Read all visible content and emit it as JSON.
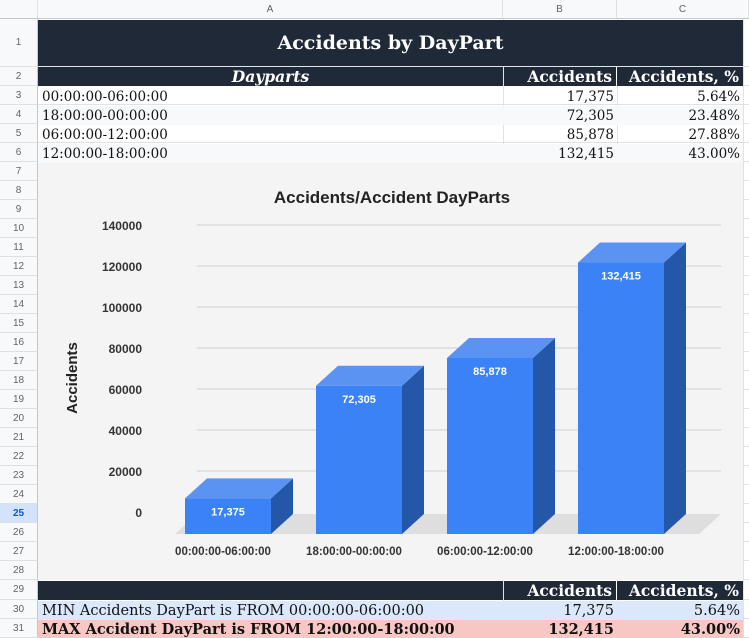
{
  "columns": [
    "A",
    "B",
    "C"
  ],
  "rows": [
    "1",
    "2",
    "3",
    "4",
    "5",
    "6",
    "7",
    "8",
    "9",
    "10",
    "11",
    "12",
    "13",
    "14",
    "15",
    "16",
    "17",
    "18",
    "19",
    "20",
    "21",
    "22",
    "23",
    "24",
    "25",
    "26",
    "27",
    "28",
    "29",
    "30",
    "31"
  ],
  "active_row": "25",
  "title": "Accidents by DayPart",
  "table": {
    "headers": [
      "Dayparts",
      "Accidents",
      "Accidents, %"
    ],
    "rows": [
      {
        "daypart": "00:00:00-06:00:00",
        "accidents": "17,375",
        "pct": "5.64%"
      },
      {
        "daypart": "18:00:00-00:00:00",
        "accidents": "72,305",
        "pct": "23.48%"
      },
      {
        "daypart": "06:00:00-12:00:00",
        "accidents": "85,878",
        "pct": "27.88%"
      },
      {
        "daypart": "12:00:00-18:00:00",
        "accidents": "132,415",
        "pct": "43.00%"
      }
    ]
  },
  "summary": {
    "headers": [
      "Accidents",
      "Accidents, %"
    ],
    "min": {
      "label": "MIN Accidents DayPart is FROM 00:00:00-06:00:00",
      "accidents": "17,375",
      "pct": "5.64%"
    },
    "max": {
      "label": "MAX Accident DayPart is FROM 12:00:00-18:00:00",
      "accidents": "132,415",
      "pct": "43.00%"
    }
  },
  "colors": {
    "header_bg": "#1f2937",
    "bar_front": "#3b82f6",
    "bar_top": "#5b93f2",
    "bar_side": "#2557a8",
    "min_row": "#dbe8fb",
    "max_row": "#f8c7c3"
  },
  "chart_data": {
    "type": "bar",
    "title": "Accidents/Accident DayParts",
    "xlabel": "",
    "ylabel": "Accidents",
    "categories": [
      "00:00:00-06:00:00",
      "18:00:00-00:00:00",
      "06:00:00-12:00:00",
      "12:00:00-18:00:00"
    ],
    "values": [
      17375,
      72305,
      85878,
      132415
    ],
    "data_labels": [
      "17,375",
      "72,305",
      "85,878",
      "132,415"
    ],
    "yticks": [
      0,
      20000,
      40000,
      60000,
      80000,
      100000,
      120000,
      140000
    ],
    "ylim": [
      0,
      140000
    ],
    "grid": true,
    "legend": "none",
    "style": "3d"
  }
}
